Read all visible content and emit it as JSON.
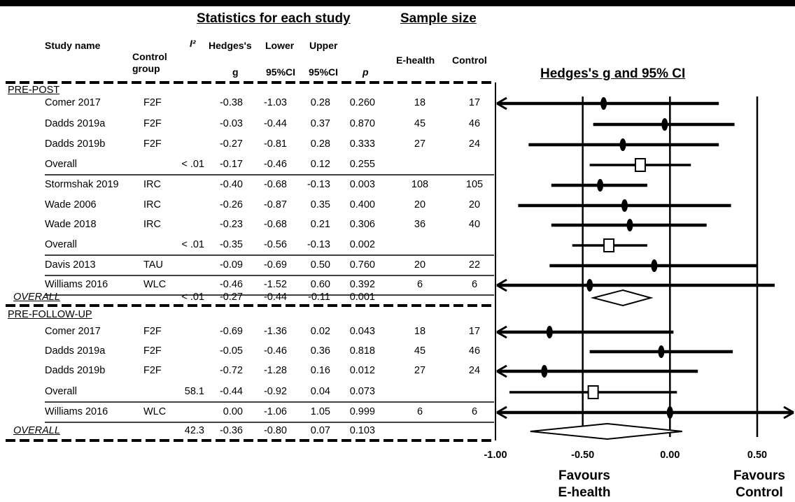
{
  "headers": {
    "stats_group": "Statistics for each study",
    "sample_group": "Sample size",
    "study_name": "Study name",
    "control_group_1": "Control",
    "control_group_2": "group",
    "i2": "I²",
    "hedges_1": "Hedges's",
    "hedges_2": "g",
    "lower_1": "Lower",
    "lower_2": "95%CI",
    "upper_1": "Upper",
    "upper_2": "95%CI",
    "p": "p",
    "ehealth": "E-health",
    "control": "Control",
    "plot_title": "Hedges's g and 95% CI"
  },
  "footer": {
    "favours_left_1": "Favours",
    "favours_left_2": "E-health",
    "favours_right_1": "Favours",
    "favours_right_2": "Control"
  },
  "chart_data": {
    "type": "forest",
    "title": "Hedges's g and 95% CI",
    "xlim": [
      -1.0,
      0.5
    ],
    "xticks": [
      "-1.00",
      "-0.50",
      "0.00",
      "0.50"
    ],
    "xtick_values": [
      -1.0,
      -0.5,
      0.0,
      0.5
    ],
    "reference_lines": [
      -0.5,
      0.0,
      0.5
    ],
    "rows": [
      {
        "kind": "section",
        "label": "PRE-POST"
      },
      {
        "kind": "study",
        "name": "Comer 2017",
        "control": "F2F",
        "i2": "",
        "g": "-0.38",
        "lower": "-1.03",
        "upper": "0.28",
        "p": "0.260",
        "ehealth": "18",
        "ctrl_n": "17",
        "g_val": -0.38,
        "lo_val": -1.03,
        "hi_val": 0.28,
        "arrow_left": true,
        "arrow_right": false
      },
      {
        "kind": "study",
        "name": "Dadds 2019a",
        "control": "F2F",
        "i2": "",
        "g": "-0.03",
        "lower": "-0.44",
        "upper": "0.37",
        "p": "0.870",
        "ehealth": "45",
        "ctrl_n": "46",
        "g_val": -0.03,
        "lo_val": -0.44,
        "hi_val": 0.37,
        "arrow_left": false,
        "arrow_right": false
      },
      {
        "kind": "study",
        "name": "Dadds 2019b",
        "control": "F2F",
        "i2": "",
        "g": "-0.27",
        "lower": "-0.81",
        "upper": "0.28",
        "p": "0.333",
        "ehealth": "27",
        "ctrl_n": "24",
        "g_val": -0.27,
        "lo_val": -0.81,
        "hi_val": 0.28,
        "arrow_left": false,
        "arrow_right": false
      },
      {
        "kind": "subtotal",
        "name": "Overall",
        "control": "",
        "i2": "< .01",
        "g": "-0.17",
        "lower": "-0.46",
        "upper": "0.12",
        "p": "0.255",
        "ehealth": "",
        "ctrl_n": "",
        "g_val": -0.17,
        "lo_val": -0.46,
        "hi_val": 0.12,
        "arrow_left": false,
        "arrow_right": false
      },
      {
        "kind": "study",
        "name": "Stormshak 2019",
        "control": "IRC",
        "i2": "",
        "g": "-0.40",
        "lower": "-0.68",
        "upper": "-0.13",
        "p": "0.003",
        "ehealth": "108",
        "ctrl_n": "105",
        "g_val": -0.4,
        "lo_val": -0.68,
        "hi_val": -0.13,
        "arrow_left": false,
        "arrow_right": false
      },
      {
        "kind": "study",
        "name": "Wade 2006",
        "control": "IRC",
        "i2": "",
        "g": "-0.26",
        "lower": "-0.87",
        "upper": "0.35",
        "p": "0.400",
        "ehealth": "20",
        "ctrl_n": "20",
        "g_val": -0.26,
        "lo_val": -0.87,
        "hi_val": 0.35,
        "arrow_left": false,
        "arrow_right": false
      },
      {
        "kind": "study",
        "name": "Wade 2018",
        "control": "IRC",
        "i2": "",
        "g": "-0.23",
        "lower": "-0.68",
        "upper": "0.21",
        "p": "0.306",
        "ehealth": "36",
        "ctrl_n": "40",
        "g_val": -0.23,
        "lo_val": -0.68,
        "hi_val": 0.21,
        "arrow_left": false,
        "arrow_right": false
      },
      {
        "kind": "subtotal",
        "name": "Overall",
        "control": "",
        "i2": "< .01",
        "g": "-0.35",
        "lower": "-0.56",
        "upper": "-0.13",
        "p": "0.002",
        "ehealth": "",
        "ctrl_n": "",
        "g_val": -0.35,
        "lo_val": -0.56,
        "hi_val": -0.13,
        "arrow_left": false,
        "arrow_right": false
      },
      {
        "kind": "study",
        "name": "Davis 2013",
        "control": "TAU",
        "i2": "",
        "g": "-0.09",
        "lower": "-0.69",
        "upper": "0.50",
        "p": "0.760",
        "ehealth": "20",
        "ctrl_n": "22",
        "g_val": -0.09,
        "lo_val": -0.69,
        "hi_val": 0.5,
        "arrow_left": false,
        "arrow_right": false
      },
      {
        "kind": "study",
        "name": "Williams 2016",
        "control": "WLC",
        "i2": "",
        "g": "-0.46",
        "lower": "-1.52",
        "upper": "0.60",
        "p": "0.392",
        "ehealth": "6",
        "ctrl_n": "6",
        "g_val": -0.46,
        "lo_val": -1.52,
        "hi_val": 0.6,
        "arrow_left": true,
        "arrow_right": false
      },
      {
        "kind": "overall",
        "name": "OVERALL",
        "control": "",
        "i2": "< .01",
        "g": "-0.27",
        "lower": "-0.44",
        "upper": "-0.11",
        "p": "0.001",
        "ehealth": "",
        "ctrl_n": "",
        "g_val": -0.27,
        "lo_val": -0.44,
        "hi_val": -0.11
      },
      {
        "kind": "section",
        "label": "PRE-FOLLOW-UP"
      },
      {
        "kind": "study",
        "name": "Comer 2017",
        "control": "F2F",
        "i2": "",
        "g": "-0.69",
        "lower": "-1.36",
        "upper": "0.02",
        "p": "0.043",
        "ehealth": "18",
        "ctrl_n": "17",
        "g_val": -0.69,
        "lo_val": -1.36,
        "hi_val": 0.02,
        "arrow_left": true,
        "arrow_right": false
      },
      {
        "kind": "study",
        "name": "Dadds 2019a",
        "control": "F2F",
        "i2": "",
        "g": "-0.05",
        "lower": "-0.46",
        "upper": "0.36",
        "p": "0.818",
        "ehealth": "45",
        "ctrl_n": "46",
        "g_val": -0.05,
        "lo_val": -0.46,
        "hi_val": 0.36,
        "arrow_left": false,
        "arrow_right": false
      },
      {
        "kind": "study",
        "name": "Dadds 2019b",
        "control": "F2F",
        "i2": "",
        "g": "-0.72",
        "lower": "-1.28",
        "upper": "0.16",
        "p": "0.012",
        "ehealth": "27",
        "ctrl_n": "24",
        "g_val": -0.72,
        "lo_val": -1.28,
        "hi_val": 0.16,
        "arrow_left": true,
        "arrow_right": false
      },
      {
        "kind": "subtotal",
        "name": "Overall",
        "control": "",
        "i2": "58.1",
        "g": "-0.44",
        "lower": "-0.92",
        "upper": "0.04",
        "p": "0.073",
        "ehealth": "",
        "ctrl_n": "",
        "g_val": -0.44,
        "lo_val": -0.92,
        "hi_val": 0.04,
        "arrow_left": false,
        "arrow_right": false
      },
      {
        "kind": "study",
        "name": "Williams 2016",
        "control": "WLC",
        "i2": "",
        "g": "0.00",
        "lower": "-1.06",
        "upper": "1.05",
        "p": "0.999",
        "ehealth": "6",
        "ctrl_n": "6",
        "g_val": 0.0,
        "lo_val": -1.06,
        "hi_val": 1.05,
        "arrow_left": true,
        "arrow_right": true
      },
      {
        "kind": "overall",
        "name": "OVERALL",
        "control": "",
        "i2": "42.3",
        "g": "-0.36",
        "lower": "-0.80",
        "upper": "0.07",
        "p": "0.103",
        "ehealth": "",
        "ctrl_n": "",
        "g_val": -0.36,
        "lo_val": -0.8,
        "hi_val": 0.07
      }
    ]
  }
}
